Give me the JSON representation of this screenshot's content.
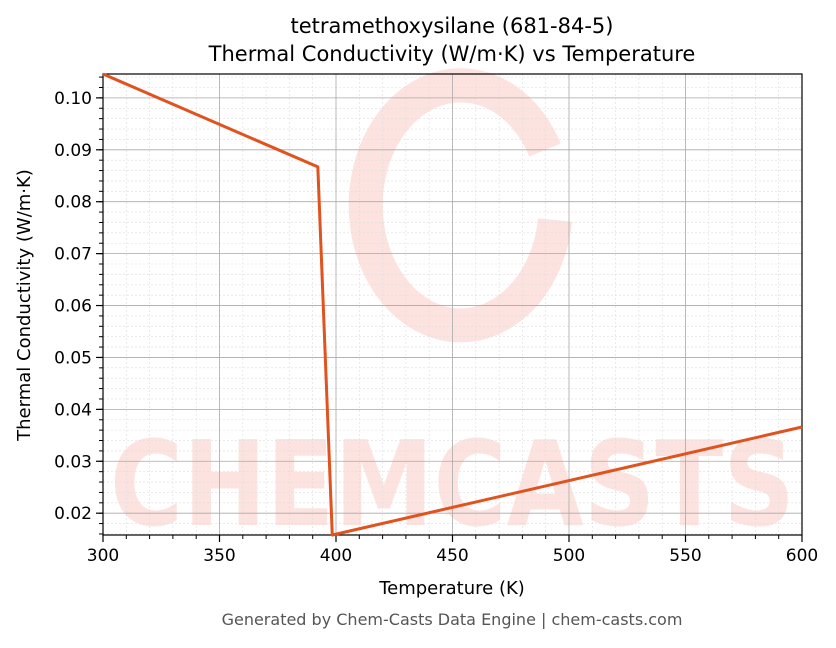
{
  "chart_data": {
    "type": "line",
    "title": "tetramethoxysilane (681-84-5)",
    "subtitle": "Thermal Conductivity (W/m·K) vs Temperature",
    "xlabel": "Temperature (K)",
    "ylabel": "Thermal Conductivity (W/m·K)",
    "xlim": [
      300,
      600
    ],
    "ylim": [
      0.0158,
      0.1046
    ],
    "xticks": [
      300,
      350,
      400,
      450,
      500,
      550,
      600
    ],
    "yticks": [
      0.02,
      0.03,
      0.04,
      0.05,
      0.06,
      0.07,
      0.08,
      0.09,
      0.1
    ],
    "ytick_labels": [
      "0.02",
      "0.03",
      "0.04",
      "0.05",
      "0.06",
      "0.07",
      "0.08",
      "0.09",
      "0.10"
    ],
    "grid": true,
    "series": [
      {
        "color": "#e0531f",
        "x": [
          300,
          392.2,
          398.4,
          600
        ],
        "y": [
          0.1046,
          0.0867,
          0.0158,
          0.0366
        ]
      }
    ]
  },
  "watermark": "CHEMCASTS",
  "footer": "Generated by Chem-Casts Data Engine | chem-casts.com"
}
